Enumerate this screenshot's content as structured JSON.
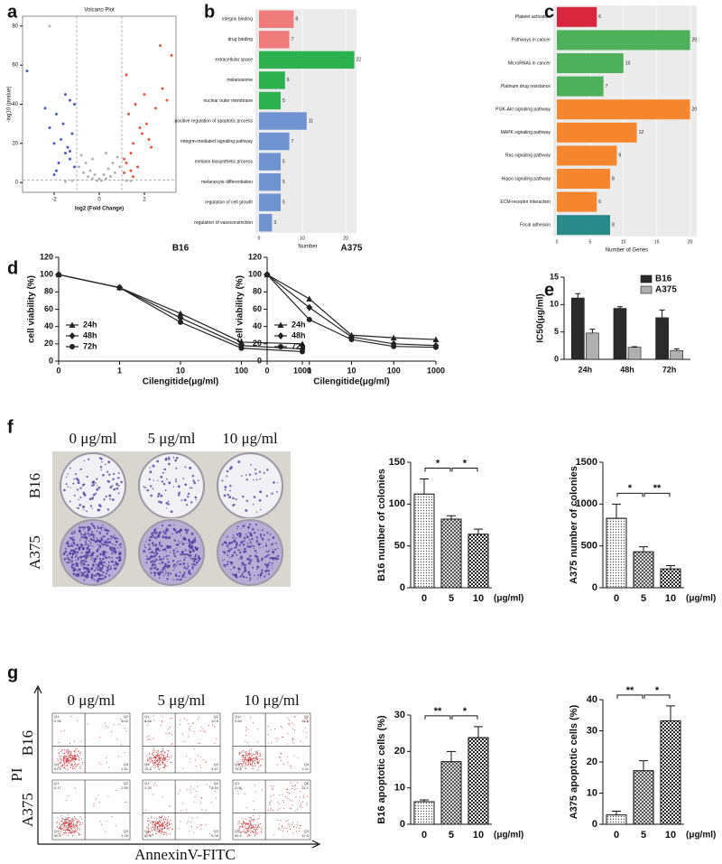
{
  "panel_labels": [
    "a",
    "b",
    "c",
    "d",
    "e",
    "f",
    "g"
  ],
  "chart_data": [
    {
      "type": "scatter",
      "title": "Volcano Plot",
      "x_label": "log2 (Fold Change)",
      "y_label": "-log10 (pvalue)",
      "xlim": [
        -3.4,
        3.4
      ],
      "ylim": [
        -5,
        85
      ],
      "xticks": [
        -2,
        0,
        2
      ],
      "yticks": [
        0,
        20,
        40,
        60,
        80
      ],
      "thresholds": {
        "x": [
          -1,
          1
        ],
        "y": [
          1.3
        ]
      },
      "series": [
        {
          "color": "#b3b3b3",
          "x": [
            -0.9,
            -0.7,
            -0.5,
            -0.3,
            -0.1,
            0.1,
            0.3,
            0.5,
            0.7,
            0.9,
            -0.6,
            -0.2,
            0.2,
            0.6,
            -0.8,
            0.8,
            -0.4,
            0.4,
            0,
            -1.2,
            1.2,
            -1.5,
            1.4,
            -0.3,
            0.3,
            -2.2
          ],
          "y": [
            8,
            5,
            3,
            2,
            1,
            1,
            2,
            3,
            5,
            8,
            10,
            4,
            4,
            10,
            14,
            13,
            6,
            7,
            2,
            1,
            1,
            0.5,
            0.8,
            12,
            15,
            80
          ]
        },
        {
          "color": "#4a5bc4",
          "x": [
            -1.1,
            -1.3,
            -1.5,
            -1.8,
            -2.0,
            -1.2,
            -1.4,
            -1.6,
            -1.9,
            -2.2,
            -1.1,
            -1.3,
            -2.4,
            -1.7,
            -1.5,
            -3.2,
            -1.3,
            -1.9,
            -2.0
          ],
          "y": [
            8,
            12,
            15,
            10,
            20,
            25,
            18,
            30,
            35,
            28,
            40,
            42,
            38,
            22,
            45,
            57,
            16,
            6,
            4
          ]
        },
        {
          "color": "#e8553a",
          "x": [
            1.1,
            1.2,
            1.4,
            1.5,
            1.7,
            1.9,
            2.1,
            2.3,
            1.3,
            1.6,
            1.8,
            2.0,
            2.5,
            2.8,
            3.0,
            1.2,
            1.4,
            2.2,
            3.2,
            1.5,
            2.7,
            1.1
          ],
          "y": [
            5,
            10,
            15,
            20,
            8,
            25,
            30,
            18,
            35,
            40,
            28,
            45,
            38,
            48,
            42,
            55,
            6,
            22,
            65,
            3,
            70,
            12
          ]
        }
      ]
    },
    {
      "type": "bar",
      "orientation": "horizontal",
      "x_label": "Number",
      "xlim": [
        0,
        22.5
      ],
      "xticks": [
        0,
        10,
        20
      ],
      "background": "#ebebeb",
      "grid": true,
      "categories": [
        "integrin binding",
        "drug binding",
        "extracellular space",
        "melanosome",
        "nuclear outer membrane",
        "positive regulation of apoptotic process",
        "integrin-mediated signaling pathway",
        "melanin biosynthetic process",
        "melanocyte differentiation",
        "regulation of cell growth",
        "regulation of vasoconstriction"
      ],
      "values": [
        8,
        7,
        22,
        6,
        5,
        11,
        7,
        5,
        5,
        5,
        3
      ],
      "colors": [
        "#f07b7b",
        "#f07b7b",
        "#2db14e",
        "#2db14e",
        "#2db14e",
        "#6f93d0",
        "#6f93d0",
        "#6f93d0",
        "#6f93d0",
        "#6f93d0",
        "#6f93d0"
      ]
    },
    {
      "type": "bar",
      "orientation": "horizontal",
      "x_label": "Number of Genes",
      "xlim": [
        0,
        21
      ],
      "xticks": [
        0,
        5,
        10,
        15,
        20
      ],
      "background": "#ebebeb",
      "grid": true,
      "categories": [
        "Platelet activation",
        "Pathways in cancer",
        "MicroRNAs in cancer",
        "Platinum drug resistance",
        "PI3K-Akt signaling pathway",
        "MAPK signaling pathway",
        "Ras signaling pathway",
        "Hippo signaling pathway",
        "ECM-receptor interaction",
        "Focal adhesion"
      ],
      "values": [
        6,
        20,
        10,
        7,
        20,
        12,
        9,
        8,
        6,
        8
      ],
      "colors": [
        "#d7263d",
        "#4db05a",
        "#4db05a",
        "#4db05a",
        "#f5862e",
        "#f5862e",
        "#f5862e",
        "#f5862e",
        "#f5862e",
        "#2a8a8a"
      ]
    },
    {
      "type": "line",
      "title": "B16",
      "x_label": "Cilengitide(μg/ml)",
      "y_label": "cell viability (%)",
      "legend": "lower left",
      "categories": [
        "0",
        "1",
        "10",
        "100",
        "1000"
      ],
      "ylim": [
        0,
        120
      ],
      "yticks": [
        0,
        20,
        40,
        60,
        80,
        100,
        120
      ],
      "series": [
        {
          "name": "24h",
          "marker": "triangle",
          "color": "#222222",
          "values": [
            100,
            85,
            55,
            22,
            20
          ]
        },
        {
          "name": "48h",
          "marker": "diamond",
          "color": "#222222",
          "values": [
            100,
            85,
            50,
            18,
            14
          ]
        },
        {
          "name": "72h",
          "marker": "circle",
          "color": "#222222",
          "values": [
            100,
            85,
            45,
            15,
            11
          ]
        }
      ]
    },
    {
      "type": "line",
      "title": "A375",
      "x_label": "Cilengitide(μg/ml)",
      "y_label": "cell viability (%)",
      "legend": "lower left",
      "categories": [
        "0",
        "1",
        "10",
        "100",
        "1000"
      ],
      "ylim": [
        0,
        120
      ],
      "yticks": [
        0,
        20,
        40,
        60,
        80,
        100,
        120
      ],
      "series": [
        {
          "name": "24h",
          "marker": "triangle",
          "color": "#222222",
          "values": [
            100,
            72,
            30,
            27,
            25
          ]
        },
        {
          "name": "48h",
          "marker": "diamond",
          "color": "#222222",
          "values": [
            100,
            62,
            28,
            20,
            18
          ]
        },
        {
          "name": "72h",
          "marker": "circle",
          "color": "#222222",
          "values": [
            100,
            48,
            25,
            17,
            16
          ]
        }
      ]
    },
    {
      "type": "bar",
      "y_label": "IC50(μg/ml)",
      "legend": "upper right",
      "categories": [
        "24h",
        "48h",
        "72h"
      ],
      "ylim": [
        0,
        15
      ],
      "yticks": [
        0,
        5,
        10,
        15
      ],
      "series": [
        {
          "name": "B16",
          "color": "#2b2b2b",
          "values": [
            11.2,
            9.3,
            7.6
          ],
          "errors": [
            0.8,
            0.3,
            1.4
          ]
        },
        {
          "name": "A375",
          "color": "#b0b0b0",
          "values": [
            4.8,
            2.2,
            1.6
          ],
          "errors": [
            0.7,
            0.1,
            0.3
          ]
        }
      ]
    },
    {
      "type": "bar",
      "y_label": "B16 number of colonies",
      "categories": [
        "0",
        "5",
        "10"
      ],
      "x_unit": "(μg/ml)",
      "values": [
        112,
        82,
        64
      ],
      "errors": [
        18,
        4,
        6
      ],
      "patterns": [
        "dots",
        "grid",
        "checker"
      ],
      "ylim": [
        0,
        150
      ],
      "yticks": [
        0,
        50,
        100,
        150
      ],
      "significance": [
        {
          "between": [
            "0",
            "5"
          ],
          "label": "*"
        },
        {
          "between": [
            "5",
            "10"
          ],
          "label": "*"
        }
      ]
    },
    {
      "type": "bar",
      "y_label": "A375 number of colonies",
      "categories": [
        "0",
        "5",
        "10"
      ],
      "x_unit": "(μg/ml)",
      "values": [
        830,
        430,
        225
      ],
      "errors": [
        170,
        60,
        40
      ],
      "patterns": [
        "dots",
        "grid",
        "checker"
      ],
      "ylim": [
        0,
        1500
      ],
      "yticks": [
        0,
        500,
        1000,
        1500
      ],
      "significance": [
        {
          "between": [
            "0",
            "5"
          ],
          "label": "*"
        },
        {
          "between": [
            "5",
            "10"
          ],
          "label": "**"
        }
      ]
    },
    {
      "type": "bar",
      "y_label": "B16 apoptotic cells (%)",
      "categories": [
        "0",
        "5",
        "10"
      ],
      "x_unit": "(μg/ml)",
      "values": [
        6.2,
        17.2,
        23.8
      ],
      "errors": [
        0.5,
        2.8,
        3.0
      ],
      "patterns": [
        "dots",
        "grid",
        "checker"
      ],
      "ylim": [
        0,
        30
      ],
      "yticks": [
        0,
        10,
        20,
        30
      ],
      "significance": [
        {
          "between": [
            "0",
            "5"
          ],
          "label": "**"
        },
        {
          "between": [
            "5",
            "10"
          ],
          "label": "*"
        }
      ]
    },
    {
      "type": "bar",
      "y_label": "A375 apoptotic cells (%)",
      "categories": [
        "0",
        "5",
        "10"
      ],
      "x_unit": "(μg/ml)",
      "values": [
        3.0,
        17.2,
        33.2
      ],
      "errors": [
        1.2,
        3.2,
        4.8
      ],
      "patterns": [
        "dots",
        "grid",
        "checker"
      ],
      "ylim": [
        0,
        40
      ],
      "yticks": [
        0,
        10,
        20,
        30,
        40
      ],
      "significance": [
        {
          "between": [
            "0",
            "5"
          ],
          "label": "**"
        },
        {
          "between": [
            "5",
            "10"
          ],
          "label": "*"
        }
      ]
    }
  ],
  "colony": {
    "columns": [
      "0 μg/ml",
      "5 μg/ml",
      "10 μg/ml"
    ],
    "rows": [
      "B16",
      "A375"
    ]
  },
  "flow": {
    "columns": [
      "0 μg/ml",
      "5 μg/ml",
      "10 μg/ml"
    ],
    "rows": [
      "B16",
      "A375"
    ],
    "y_label": "PI",
    "x_label": "AnnexinV-FITC",
    "quadrant_names": [
      "Q1",
      "Q2",
      "Q3",
      "Q4"
    ],
    "quadrants": [
      [
        [
          "2.06",
          "4.42",
          "1.61",
          "91.9"
        ],
        [
          "8.48",
          "10.6",
          "4.67",
          "76.3"
        ],
        [
          "3.64",
          "15.6",
          "4.11",
          "76.6"
        ]
      ],
      [
        [
          "0.17",
          "2.60",
          "1.26",
          "95.9"
        ],
        [
          "2.25",
          "9.54",
          "5.35",
          "82.9"
        ],
        [
          "3.06",
          "24.1",
          "12.5",
          "59.4"
        ]
      ]
    ]
  }
}
